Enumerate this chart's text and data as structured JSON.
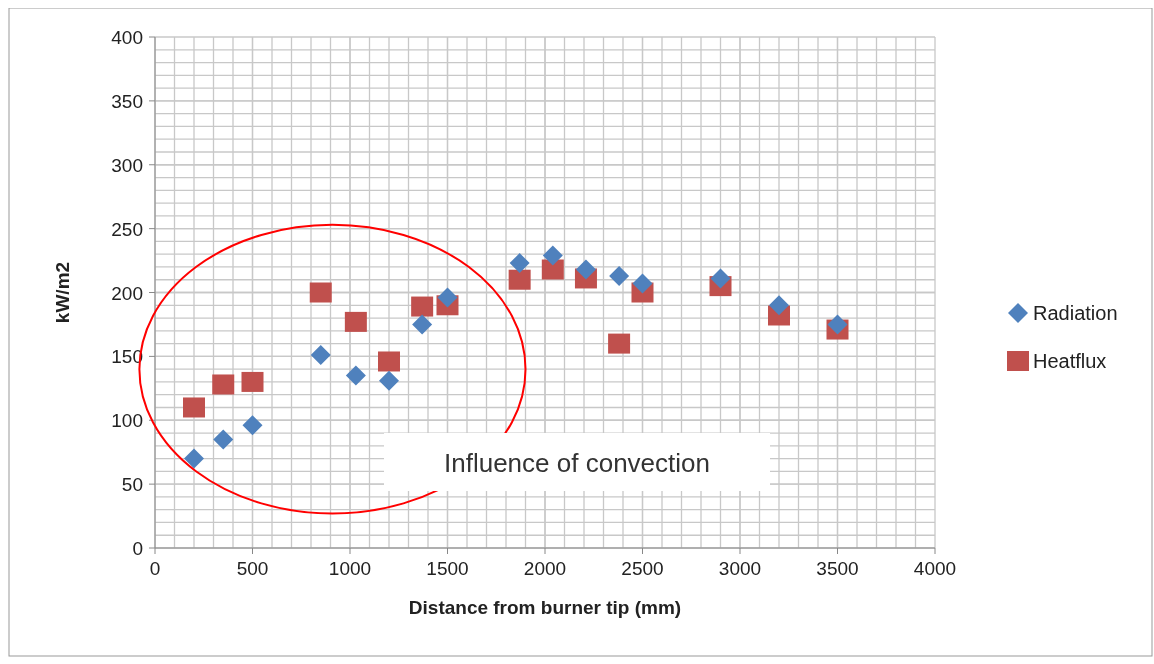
{
  "chart_data": {
    "type": "scatter",
    "xlabel": "Distance from burner tip (mm)",
    "ylabel": "kW/m2",
    "xlim": [
      0,
      4000
    ],
    "xticks": [
      0,
      500,
      1000,
      1500,
      2000,
      2500,
      3000,
      3500,
      4000
    ],
    "ylim": [
      0,
      400
    ],
    "yticks": [
      0,
      50,
      100,
      150,
      200,
      250,
      300,
      350,
      400
    ],
    "grid": true,
    "legend": "right",
    "x": [
      200,
      350,
      500,
      850,
      1030,
      1200,
      1370,
      1500,
      1870,
      2040,
      2210,
      2380,
      2500,
      2900,
      3200,
      3500
    ],
    "series": [
      {
        "name": "Radiation",
        "color": "#4f81bd",
        "marker": "diamond",
        "values": [
          70,
          85,
          96,
          151,
          135,
          131,
          175,
          196,
          223,
          229,
          218,
          213,
          207,
          211,
          190,
          175
        ]
      },
      {
        "name": "Heatflux",
        "color": "#c0504d",
        "marker": "square",
        "values": [
          110,
          128,
          130,
          200,
          177,
          146,
          189,
          190,
          210,
          218,
          211,
          160,
          200,
          205,
          182,
          171
        ]
      }
    ],
    "annotations": [
      "Influence of convection"
    ]
  }
}
